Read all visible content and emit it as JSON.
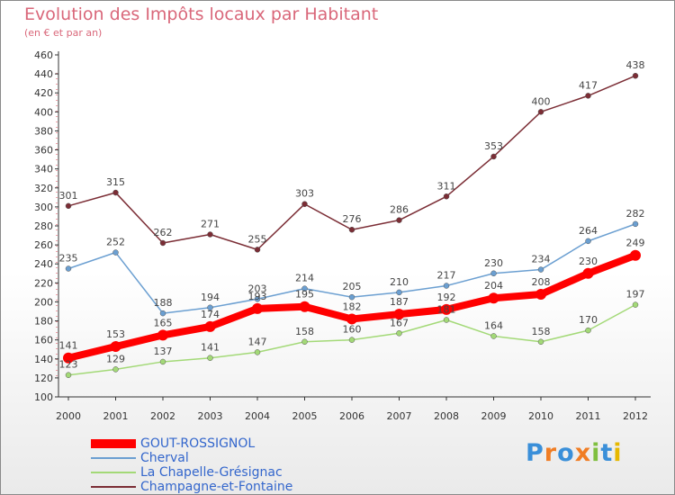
{
  "chart_data": {
    "type": "line",
    "title": "Evolution des Impôts locaux par Habitant",
    "subtitle": "(en € et par an)",
    "xlabel": "",
    "ylabel": "",
    "categories": [
      "2000",
      "2001",
      "2002",
      "2003",
      "2004",
      "2005",
      "2006",
      "2007",
      "2008",
      "2009",
      "2010",
      "2011",
      "2012"
    ],
    "ylim": [
      100,
      460
    ],
    "yticks": [
      100,
      120,
      140,
      160,
      180,
      200,
      220,
      240,
      260,
      280,
      300,
      320,
      340,
      360,
      380,
      400,
      420,
      440,
      460
    ],
    "grid": false,
    "legend_position": "bottom-left",
    "series": [
      {
        "name": "GOUT-ROSSIGNOL",
        "color": "#ff0000",
        "width": 8,
        "values": [
          141,
          153,
          165,
          174,
          193,
          195,
          182,
          187,
          192,
          204,
          208,
          230,
          249
        ]
      },
      {
        "name": "Cherval",
        "color": "#6b9fd1",
        "width": 1.5,
        "values": [
          235,
          252,
          188,
          194,
          203,
          214,
          205,
          210,
          217,
          230,
          234,
          264,
          282
        ]
      },
      {
        "name": "La Chapelle-Grésignac",
        "color": "#a3d977",
        "width": 1.5,
        "values": [
          123,
          129,
          137,
          141,
          147,
          158,
          160,
          167,
          181,
          164,
          158,
          170,
          197
        ]
      },
      {
        "name": "Champagne-et-Fontaine",
        "color": "#7b2d35",
        "width": 1.5,
        "values": [
          301,
          315,
          262,
          271,
          255,
          303,
          276,
          286,
          311,
          353,
          400,
          417,
          438
        ]
      }
    ]
  },
  "logo": {
    "letters": [
      "P",
      "r",
      "o",
      "x",
      "i",
      "t",
      "i"
    ]
  }
}
